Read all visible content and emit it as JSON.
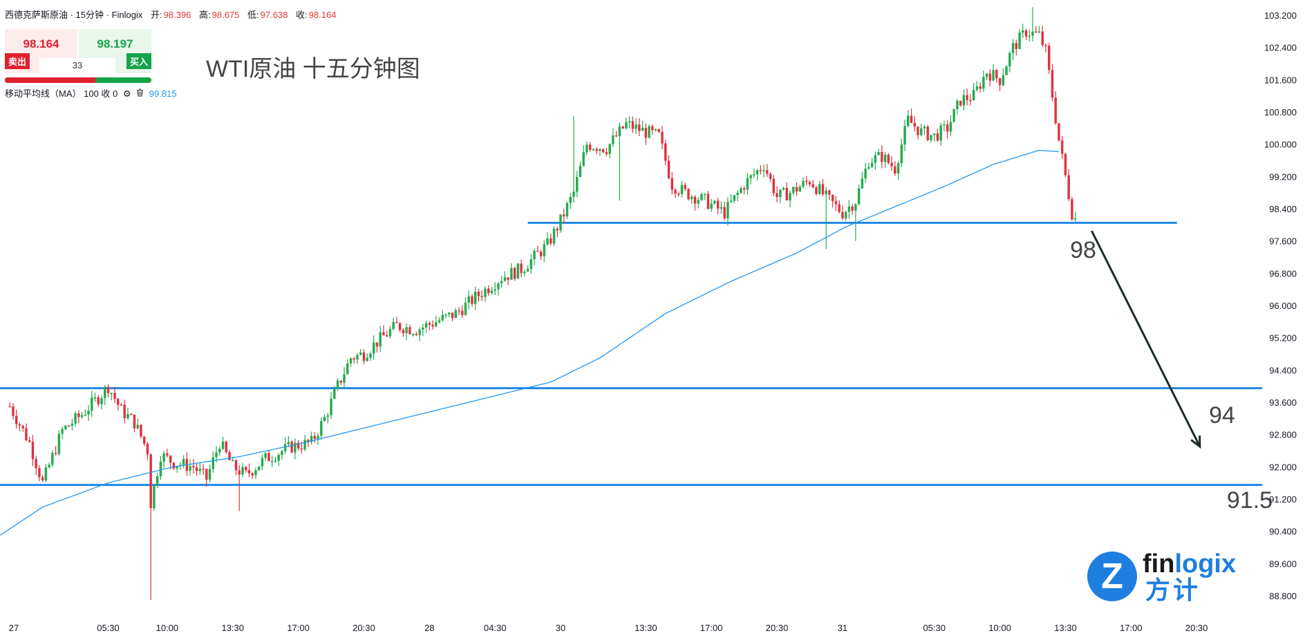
{
  "header": {
    "symbol": "西德克萨斯原油 · 15分钟 · Finlogix",
    "open_label": "开:",
    "open_value": "98.396",
    "high_label": "高:",
    "high_value": "98.675",
    "low_label": "低:",
    "low_value": "97.638",
    "close_label": "收:",
    "close_value": "98.164"
  },
  "trade_panel": {
    "sell_price": "98.164",
    "buy_price": "98.197",
    "sell_label": "卖出",
    "buy_label": "买入",
    "spread": "33",
    "sell_ratio": 0.62
  },
  "indicator": {
    "label": "移动平均线（MA） 100 收 0",
    "settings_icon": "gear-icon",
    "delete_icon": "trash-icon",
    "value": "99.815"
  },
  "annotation_title": "WTI原油 十五分钟图",
  "logo": {
    "word_dark": "fin",
    "word_blue": "logix",
    "cn": "方计",
    "mark": "Z"
  },
  "colors": {
    "up": "#22ab4d",
    "down": "#e0303e",
    "ma": "#2196f3",
    "level_line": "#1e88e5",
    "arrow": "#1c2a2a",
    "axis_text": "#131722"
  },
  "chart_data": {
    "type": "candlestick",
    "title": "WTI原油 十五分钟图",
    "ylim": [
      88.4,
      103.6
    ],
    "y_ticks": [
      "103.200",
      "102.400",
      "101.600",
      "100.800",
      "100.000",
      "99.200",
      "98.400",
      "97.600",
      "96.800",
      "96.000",
      "95.200",
      "94.400",
      "93.600",
      "92.800",
      "92.000",
      "91.200",
      "90.400",
      "89.600",
      "88.800"
    ],
    "x_ticks": [
      "27",
      "05:30",
      "10:00",
      "13:30",
      "17:00",
      "20:30",
      "28",
      "04:30",
      "30",
      "13:30",
      "17:00",
      "20:30",
      "31",
      "05:30",
      "10:00",
      "13:30",
      "17:00",
      "20:30"
    ],
    "x_tick_index": [
      0,
      30,
      48,
      68,
      88,
      108,
      128,
      148,
      168,
      194,
      214,
      234,
      254,
      282,
      302,
      322,
      342,
      362
    ],
    "x_range": [
      -3,
      382
    ],
    "waypoints": [
      [
        0,
        93.5
      ],
      [
        6,
        92.6
      ],
      [
        10,
        91.6
      ],
      [
        16,
        92.9
      ],
      [
        22,
        93.3
      ],
      [
        28,
        93.8
      ],
      [
        30,
        94.0
      ],
      [
        34,
        93.4
      ],
      [
        38,
        93.1
      ],
      [
        42,
        92.4
      ],
      [
        43,
        91.1
      ],
      [
        46,
        92.3
      ],
      [
        50,
        92.1
      ],
      [
        56,
        92.0
      ],
      [
        60,
        91.7
      ],
      [
        64,
        92.6
      ],
      [
        68,
        92.0
      ],
      [
        72,
        91.8
      ],
      [
        78,
        92.2
      ],
      [
        86,
        92.5
      ],
      [
        92,
        92.6
      ],
      [
        96,
        93.2
      ],
      [
        100,
        94.0
      ],
      [
        104,
        94.7
      ],
      [
        108,
        94.8
      ],
      [
        112,
        95.1
      ],
      [
        118,
        95.5
      ],
      [
        124,
        95.4
      ],
      [
        130,
        95.6
      ],
      [
        136,
        95.8
      ],
      [
        142,
        96.2
      ],
      [
        150,
        96.7
      ],
      [
        156,
        96.9
      ],
      [
        160,
        97.2
      ],
      [
        164,
        97.5
      ],
      [
        168,
        98.1
      ],
      [
        172,
        98.8
      ],
      [
        176,
        100.0
      ],
      [
        182,
        99.9
      ],
      [
        188,
        100.5
      ],
      [
        194,
        100.3
      ],
      [
        198,
        100.2
      ],
      [
        202,
        99.0
      ],
      [
        206,
        98.8
      ],
      [
        212,
        98.6
      ],
      [
        218,
        98.3
      ],
      [
        224,
        99.0
      ],
      [
        230,
        99.5
      ],
      [
        234,
        98.7
      ],
      [
        238,
        98.8
      ],
      [
        244,
        99.1
      ],
      [
        250,
        98.6
      ],
      [
        254,
        98.3
      ],
      [
        258,
        98.6
      ],
      [
        262,
        99.6
      ],
      [
        266,
        99.7
      ],
      [
        270,
        99.4
      ],
      [
        274,
        100.6
      ],
      [
        278,
        100.3
      ],
      [
        282,
        100.2
      ],
      [
        286,
        100.4
      ],
      [
        290,
        101.1
      ],
      [
        294,
        101.2
      ],
      [
        298,
        101.8
      ],
      [
        302,
        101.6
      ],
      [
        306,
        102.4
      ],
      [
        310,
        102.8
      ],
      [
        314,
        102.7
      ],
      [
        316,
        102.3
      ],
      [
        318,
        101.2
      ],
      [
        320,
        100.1
      ],
      [
        322,
        99.2
      ],
      [
        324,
        98.3
      ],
      [
        325,
        98.16
      ]
    ],
    "spikes": [
      [
        43,
        88.7,
        "low"
      ],
      [
        70,
        90.9,
        "low"
      ],
      [
        172,
        100.7,
        "high"
      ],
      [
        186,
        98.6,
        "low"
      ],
      [
        249,
        97.4,
        "low"
      ],
      [
        258,
        97.6,
        "low"
      ],
      [
        312,
        103.4,
        "high"
      ]
    ],
    "series": [
      {
        "name": "移动平均线（MA） 100 收 0",
        "type": "line",
        "waypoints": [
          [
            -3,
            90.3
          ],
          [
            10,
            91.0
          ],
          [
            30,
            91.6
          ],
          [
            50,
            92.0
          ],
          [
            70,
            92.25
          ],
          [
            90,
            92.6
          ],
          [
            110,
            93.0
          ],
          [
            130,
            93.4
          ],
          [
            150,
            93.8
          ],
          [
            165,
            94.1
          ],
          [
            180,
            94.7
          ],
          [
            200,
            95.8
          ],
          [
            220,
            96.6
          ],
          [
            240,
            97.3
          ],
          [
            255,
            97.95
          ],
          [
            270,
            98.45
          ],
          [
            285,
            98.95
          ],
          [
            300,
            99.5
          ],
          [
            314,
            99.85
          ],
          [
            320,
            99.815
          ]
        ]
      }
    ],
    "horizontal_levels": [
      {
        "price": 98.05,
        "label": "98",
        "from": 158,
        "to": 356
      },
      {
        "price": 93.95,
        "label": "94",
        "from": -3,
        "to": 382
      },
      {
        "price": 91.55,
        "label": "91.5",
        "from": -3,
        "to": 382
      }
    ],
    "arrow": {
      "from": [
        330,
        97.85
      ],
      "to": [
        363,
        92.5
      ]
    }
  }
}
